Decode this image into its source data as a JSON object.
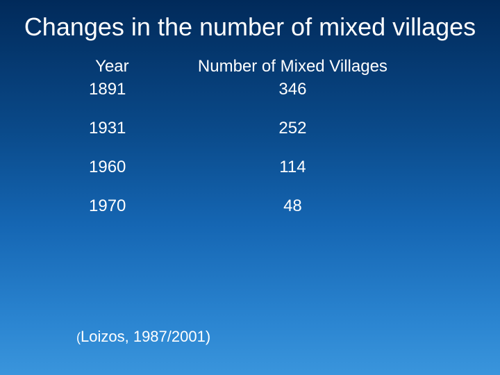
{
  "slide": {
    "title": "Changes in the number of mixed villages",
    "table": {
      "columns": [
        "Year",
        "Number of Mixed Villages"
      ],
      "rows": [
        [
          "1891",
          "346"
        ],
        [
          "1931",
          "252"
        ],
        [
          "1960",
          "114"
        ],
        [
          "1970",
          "48"
        ]
      ],
      "header_fontsize": 24,
      "cell_fontsize": 24,
      "text_color": "#ffffff"
    },
    "citation": {
      "open_paren": "(",
      "author": "Loizos, ",
      "years": "1987/2001)",
      "full": "(Loizos, 1987/2001)"
    },
    "background": {
      "gradient_stops": [
        "#012a5a",
        "#0a4a8a",
        "#1566b3",
        "#2a84d0",
        "#3a95dc"
      ]
    },
    "typography": {
      "title_font": "Arial",
      "title_fontsize": 36,
      "body_font": "Verdana",
      "body_fontsize": 24,
      "citation_fontsize": 22
    }
  }
}
